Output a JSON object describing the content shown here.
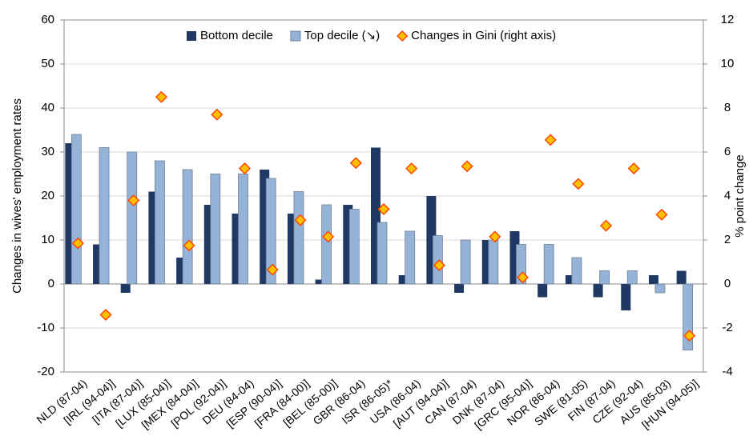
{
  "chart_data": {
    "type": "bar",
    "y_label": "Changes in wives' employment rates",
    "y2_label": "% point change",
    "categories": [
      "NLD (87-04)",
      "[IRL (94-04)]",
      "[ITA (87-04)]",
      "[LUX (85-04)]",
      "[MEX (84-04)]",
      "[POL (92-04)]",
      "DEU (84-04)",
      "[ESP (90-04)]",
      "[FRA (84-00)]",
      "[BEL (85-00)]",
      "GBR (86-04)",
      "ISR (86-05)*",
      "USA (86-04)",
      "[AUT (94-04)]",
      "CAN (87-04)",
      "DNK (87-04)",
      "[GRC (95-04)]",
      "NOR (86-04)",
      "SWE (81-05)",
      "FIN (87-04)",
      "CZE (92-04)",
      "AUS (85-03)",
      "[HUN (94-05)]"
    ],
    "series": [
      {
        "name": "Bottom decile",
        "color": "#1f3864",
        "values": [
          32,
          9,
          -2,
          21,
          6,
          18,
          16,
          26,
          16,
          1,
          18,
          31,
          2,
          20,
          -2,
          10,
          12,
          -3,
          2,
          -3,
          -6,
          2,
          3
        ]
      },
      {
        "name": "Top decile (↘)",
        "color": "#95b3d7",
        "values": [
          34,
          31,
          30,
          28,
          26,
          25,
          25,
          24,
          21,
          18,
          17,
          14,
          12,
          11,
          10,
          10,
          9,
          9,
          6,
          3,
          3,
          -2,
          -15
        ]
      },
      {
        "name": "Changes in Gini (right axis)",
        "color": "#ffc000",
        "marker": "diamond",
        "axis": "y2",
        "values": [
          1.85,
          -1.4,
          3.8,
          8.5,
          1.75,
          7.7,
          5.25,
          0.65,
          2.9,
          2.15,
          5.5,
          3.4,
          5.25,
          0.85,
          5.35,
          2.15,
          0.3,
          6.55,
          4.55,
          2.65,
          5.25,
          3.15,
          -2.35
        ]
      }
    ],
    "ylim": [
      -20,
      60
    ],
    "yticks": [
      -20,
      -10,
      0,
      10,
      20,
      30,
      40,
      50,
      60
    ],
    "y2lim": [
      -4,
      12
    ],
    "y2ticks": [
      -4,
      -2,
      0,
      2,
      4,
      6,
      8,
      10,
      12
    ],
    "grid": true
  }
}
